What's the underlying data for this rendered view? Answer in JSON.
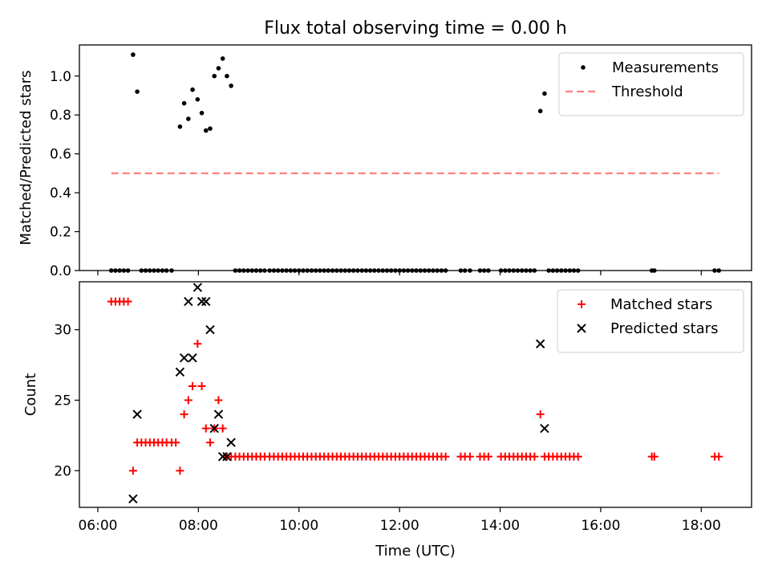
{
  "figure": {
    "title": "Flux total observing time = 0.00 h",
    "xlabel": "Time (UTC)"
  },
  "chart_data": [
    {
      "type": "scatter",
      "ylabel": "Matched/Predicted stars",
      "xlim": [
        "05:38",
        "19:00"
      ],
      "ylim": [
        0,
        1.16
      ],
      "yticks": [
        0.0,
        0.2,
        0.4,
        0.6,
        0.8,
        1.0
      ],
      "ytick_labels": [
        "0.0",
        "0.2",
        "0.4",
        "0.6",
        "0.8",
        "1.0"
      ],
      "xtick_labels_shown": false,
      "legend_position": "top-right",
      "series": [
        {
          "name": "Measurements",
          "marker": "dot",
          "color": "#000000",
          "points": [
            [
              "06:42",
              1.11
            ],
            [
              "06:47",
              0.92
            ],
            [
              "07:38",
              0.74
            ],
            [
              "07:43",
              0.86
            ],
            [
              "07:48",
              0.78
            ],
            [
              "07:53",
              0.93
            ],
            [
              "07:59",
              0.88
            ],
            [
              "08:04",
              0.81
            ],
            [
              "08:09",
              0.72
            ],
            [
              "08:14",
              0.73
            ],
            [
              "08:19",
              1.0
            ],
            [
              "08:24",
              1.04
            ],
            [
              "08:29",
              1.09
            ],
            [
              "08:34",
              1.0
            ],
            [
              "08:39",
              0.95
            ],
            [
              "14:48",
              0.82
            ],
            [
              "14:53",
              0.91
            ],
            [
              "06:16",
              0
            ],
            [
              "06:21",
              0
            ],
            [
              "06:26",
              0
            ],
            [
              "06:31",
              0
            ],
            [
              "06:36",
              0
            ],
            [
              "06:52",
              0
            ],
            [
              "06:57",
              0
            ],
            [
              "07:02",
              0
            ],
            [
              "07:07",
              0
            ],
            [
              "07:12",
              0
            ],
            [
              "07:17",
              0
            ],
            [
              "07:22",
              0
            ],
            [
              "07:28",
              0
            ],
            [
              "08:44",
              0
            ],
            [
              "08:49",
              0
            ],
            [
              "08:54",
              0
            ],
            [
              "08:59",
              0
            ],
            [
              "09:04",
              0
            ],
            [
              "09:09",
              0
            ],
            [
              "09:14",
              0
            ],
            [
              "09:19",
              0
            ],
            [
              "09:25",
              0
            ],
            [
              "09:30",
              0
            ],
            [
              "09:35",
              0
            ],
            [
              "09:40",
              0
            ],
            [
              "09:45",
              0
            ],
            [
              "09:50",
              0
            ],
            [
              "09:55",
              0
            ],
            [
              "10:00",
              0
            ],
            [
              "10:05",
              0
            ],
            [
              "10:10",
              0
            ],
            [
              "10:15",
              0
            ],
            [
              "10:20",
              0
            ],
            [
              "10:25",
              0
            ],
            [
              "10:30",
              0
            ],
            [
              "10:35",
              0
            ],
            [
              "10:40",
              0
            ],
            [
              "10:45",
              0
            ],
            [
              "10:50",
              0
            ],
            [
              "10:55",
              0
            ],
            [
              "11:00",
              0
            ],
            [
              "11:05",
              0
            ],
            [
              "11:10",
              0
            ],
            [
              "11:15",
              0
            ],
            [
              "11:20",
              0
            ],
            [
              "11:25",
              0
            ],
            [
              "11:30",
              0
            ],
            [
              "11:35",
              0
            ],
            [
              "11:40",
              0
            ],
            [
              "11:45",
              0
            ],
            [
              "11:50",
              0
            ],
            [
              "11:55",
              0
            ],
            [
              "12:00",
              0
            ],
            [
              "12:05",
              0
            ],
            [
              "12:10",
              0
            ],
            [
              "12:15",
              0
            ],
            [
              "12:20",
              0
            ],
            [
              "12:25",
              0
            ],
            [
              "12:30",
              0
            ],
            [
              "12:35",
              0
            ],
            [
              "12:40",
              0
            ],
            [
              "12:45",
              0
            ],
            [
              "12:50",
              0
            ],
            [
              "12:55",
              0
            ],
            [
              "13:13",
              0
            ],
            [
              "13:18",
              0
            ],
            [
              "13:24",
              0
            ],
            [
              "13:36",
              0
            ],
            [
              "13:41",
              0
            ],
            [
              "13:46",
              0
            ],
            [
              "14:01",
              0
            ],
            [
              "14:06",
              0
            ],
            [
              "14:11",
              0
            ],
            [
              "14:16",
              0
            ],
            [
              "14:21",
              0
            ],
            [
              "14:26",
              0
            ],
            [
              "14:31",
              0
            ],
            [
              "14:36",
              0
            ],
            [
              "14:41",
              0
            ],
            [
              "14:58",
              0
            ],
            [
              "15:03",
              0
            ],
            [
              "15:08",
              0
            ],
            [
              "15:13",
              0
            ],
            [
              "15:18",
              0
            ],
            [
              "15:23",
              0
            ],
            [
              "15:28",
              0
            ],
            [
              "15:33",
              0
            ],
            [
              "17:01",
              0
            ],
            [
              "17:04",
              0
            ],
            [
              "18:16",
              0
            ],
            [
              "18:21",
              0
            ]
          ]
        },
        {
          "name": "Threshold",
          "marker": "dashed-line",
          "color": "#ff7f7f",
          "points": [
            [
              "06:16",
              0.5
            ],
            [
              "18:21",
              0.5
            ]
          ]
        }
      ]
    },
    {
      "type": "scatter",
      "ylabel": "Count",
      "xlim": [
        "05:38",
        "19:00"
      ],
      "ylim": [
        17.4,
        33.4
      ],
      "yticks": [
        20,
        25,
        30
      ],
      "ytick_labels": [
        "20",
        "25",
        "30"
      ],
      "xticks": [
        "06:00",
        "08:00",
        "10:00",
        "12:00",
        "14:00",
        "16:00",
        "18:00"
      ],
      "legend_position": "top-right",
      "series": [
        {
          "name": "Matched stars",
          "marker": "plus",
          "color": "#ff0000",
          "points": [
            [
              "06:16",
              32
            ],
            [
              "06:21",
              32
            ],
            [
              "06:26",
              32
            ],
            [
              "06:31",
              32
            ],
            [
              "06:36",
              32
            ],
            [
              "06:42",
              20
            ],
            [
              "06:47",
              22
            ],
            [
              "06:52",
              22
            ],
            [
              "06:57",
              22
            ],
            [
              "07:02",
              22
            ],
            [
              "07:07",
              22
            ],
            [
              "07:12",
              22
            ],
            [
              "07:17",
              22
            ],
            [
              "07:22",
              22
            ],
            [
              "07:28",
              22
            ],
            [
              "07:33",
              22
            ],
            [
              "07:38",
              20
            ],
            [
              "07:43",
              24
            ],
            [
              "07:48",
              25
            ],
            [
              "07:53",
              26
            ],
            [
              "07:59",
              29
            ],
            [
              "08:04",
              26
            ],
            [
              "08:09",
              23
            ],
            [
              "08:14",
              22
            ],
            [
              "08:19",
              23
            ],
            [
              "08:24",
              25
            ],
            [
              "08:29",
              23
            ],
            [
              "08:34",
              21
            ],
            [
              "08:39",
              21
            ],
            [
              "08:44",
              21
            ],
            [
              "08:49",
              21
            ],
            [
              "08:54",
              21
            ],
            [
              "08:59",
              21
            ],
            [
              "09:04",
              21
            ],
            [
              "09:09",
              21
            ],
            [
              "09:14",
              21
            ],
            [
              "09:19",
              21
            ],
            [
              "09:25",
              21
            ],
            [
              "09:30",
              21
            ],
            [
              "09:35",
              21
            ],
            [
              "09:40",
              21
            ],
            [
              "09:45",
              21
            ],
            [
              "09:50",
              21
            ],
            [
              "09:55",
              21
            ],
            [
              "10:00",
              21
            ],
            [
              "10:05",
              21
            ],
            [
              "10:10",
              21
            ],
            [
              "10:15",
              21
            ],
            [
              "10:20",
              21
            ],
            [
              "10:25",
              21
            ],
            [
              "10:30",
              21
            ],
            [
              "10:35",
              21
            ],
            [
              "10:40",
              21
            ],
            [
              "10:45",
              21
            ],
            [
              "10:50",
              21
            ],
            [
              "10:55",
              21
            ],
            [
              "11:00",
              21
            ],
            [
              "11:05",
              21
            ],
            [
              "11:10",
              21
            ],
            [
              "11:15",
              21
            ],
            [
              "11:20",
              21
            ],
            [
              "11:25",
              21
            ],
            [
              "11:30",
              21
            ],
            [
              "11:35",
              21
            ],
            [
              "11:40",
              21
            ],
            [
              "11:45",
              21
            ],
            [
              "11:50",
              21
            ],
            [
              "11:55",
              21
            ],
            [
              "12:00",
              21
            ],
            [
              "12:05",
              21
            ],
            [
              "12:10",
              21
            ],
            [
              "12:15",
              21
            ],
            [
              "12:20",
              21
            ],
            [
              "12:25",
              21
            ],
            [
              "12:30",
              21
            ],
            [
              "12:35",
              21
            ],
            [
              "12:40",
              21
            ],
            [
              "12:45",
              21
            ],
            [
              "12:50",
              21
            ],
            [
              "12:55",
              21
            ],
            [
              "13:13",
              21
            ],
            [
              "13:18",
              21
            ],
            [
              "13:24",
              21
            ],
            [
              "13:36",
              21
            ],
            [
              "13:41",
              21
            ],
            [
              "13:46",
              21
            ],
            [
              "14:01",
              21
            ],
            [
              "14:06",
              21
            ],
            [
              "14:11",
              21
            ],
            [
              "14:16",
              21
            ],
            [
              "14:21",
              21
            ],
            [
              "14:26",
              21
            ],
            [
              "14:31",
              21
            ],
            [
              "14:36",
              21
            ],
            [
              "14:41",
              21
            ],
            [
              "14:48",
              24
            ],
            [
              "14:53",
              21
            ],
            [
              "14:58",
              21
            ],
            [
              "15:03",
              21
            ],
            [
              "15:08",
              21
            ],
            [
              "15:13",
              21
            ],
            [
              "15:18",
              21
            ],
            [
              "15:23",
              21
            ],
            [
              "15:28",
              21
            ],
            [
              "15:33",
              21
            ],
            [
              "17:01",
              21
            ],
            [
              "17:04",
              21
            ],
            [
              "18:16",
              21
            ],
            [
              "18:21",
              21
            ]
          ]
        },
        {
          "name": "Predicted stars",
          "marker": "x",
          "color": "#000000",
          "points": [
            [
              "06:42",
              18
            ],
            [
              "06:47",
              24
            ],
            [
              "07:38",
              27
            ],
            [
              "07:43",
              28
            ],
            [
              "07:48",
              32
            ],
            [
              "07:53",
              28
            ],
            [
              "07:59",
              33
            ],
            [
              "08:04",
              32
            ],
            [
              "08:09",
              32
            ],
            [
              "08:14",
              30
            ],
            [
              "08:19",
              23
            ],
            [
              "08:24",
              24
            ],
            [
              "08:29",
              21
            ],
            [
              "08:34",
              21
            ],
            [
              "08:39",
              22
            ],
            [
              "14:48",
              29
            ],
            [
              "14:53",
              23
            ]
          ]
        }
      ]
    }
  ]
}
